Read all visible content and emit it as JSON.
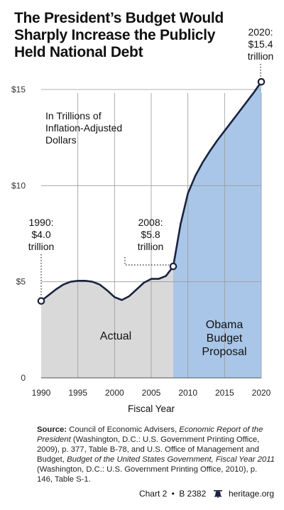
{
  "title": "The President’s Budget Would Sharply Increase the Publicly Held National Debt",
  "units_note": "In Trillions of Inflation-Adjusted Dollars",
  "chart_data": {
    "type": "area",
    "title": "The President’s Budget Would Sharply Increase the Publicly Held National Debt",
    "xlabel": "Fiscal Year",
    "ylabel": "",
    "ylim": [
      0,
      16
    ],
    "xlim": [
      1990,
      2020
    ],
    "yticks": [
      0,
      5,
      10,
      15
    ],
    "ytick_labels": [
      "0",
      "$5",
      "$10",
      "$15"
    ],
    "xticks": [
      1990,
      1995,
      2000,
      2005,
      2010,
      2015,
      2020
    ],
    "grid": true,
    "series": [
      {
        "name": "Actual",
        "color": "#d9d9d9",
        "x": [
          1990,
          1991,
          1992,
          1993,
          1994,
          1995,
          1996,
          1997,
          1998,
          1999,
          2000,
          2001,
          2002,
          2003,
          2004,
          2005,
          2006,
          2007,
          2008
        ],
        "y": [
          4.0,
          4.3,
          4.6,
          4.85,
          5.0,
          5.05,
          5.05,
          5.0,
          4.85,
          4.55,
          4.2,
          4.05,
          4.25,
          4.6,
          4.95,
          5.15,
          5.15,
          5.3,
          5.8
        ]
      },
      {
        "name": "Obama Budget Proposal",
        "color": "#a9c6e8",
        "x": [
          2008,
          2009,
          2010,
          2011,
          2012,
          2013,
          2014,
          2015,
          2016,
          2017,
          2018,
          2019,
          2020
        ],
        "y": [
          5.8,
          8.0,
          9.6,
          10.5,
          11.2,
          11.8,
          12.35,
          12.85,
          13.35,
          13.85,
          14.35,
          14.85,
          15.4
        ]
      }
    ],
    "region_labels": [
      "Actual",
      "Obama Budget Proposal"
    ],
    "annotations": [
      {
        "text": "1990: $4.0 trillion",
        "x": 1990,
        "y": 4.0
      },
      {
        "text": "2008: $5.8 trillion",
        "x": 2008,
        "y": 5.8
      },
      {
        "text": "2020: $15.4 trillion",
        "x": 2020,
        "y": 15.4
      }
    ]
  },
  "annotations": {
    "a1990": [
      "1990:",
      "$4.0",
      "trillion"
    ],
    "a2008": [
      "2008:",
      "$5.8",
      "trillion"
    ],
    "a2020": [
      "2020:",
      "$15.4",
      "trillion"
    ]
  },
  "regions": {
    "actual": "Actual",
    "proposal": [
      "Obama",
      "Budget",
      "Proposal"
    ]
  },
  "source": {
    "label": "Source:",
    "text_1": " Council of Economic Advisers, ",
    "italic_1": "Economic Report of the President",
    "text_2": " (Washington, D.C.: U.S. Government Printing Office, 2009), p. 377, Table B-78, and U.S. Office of Management and Budget, ",
    "italic_2": "Budget of the United States Government, Fiscal Year 2011",
    "text_3": " (Washington, D.C.: U.S. Government Printing Office, 2010), p. 146, Table S-1."
  },
  "footer": {
    "chart_id": "Chart 2",
    "separator": "•",
    "report": "B 2382",
    "site": "heritage.org"
  },
  "colors": {
    "actual_fill": "#d9d9d9",
    "proposal_fill": "#a9c6e8",
    "line": "#1a2340",
    "marker_fill": "#ffffff",
    "grid": "#9a9a9a"
  }
}
